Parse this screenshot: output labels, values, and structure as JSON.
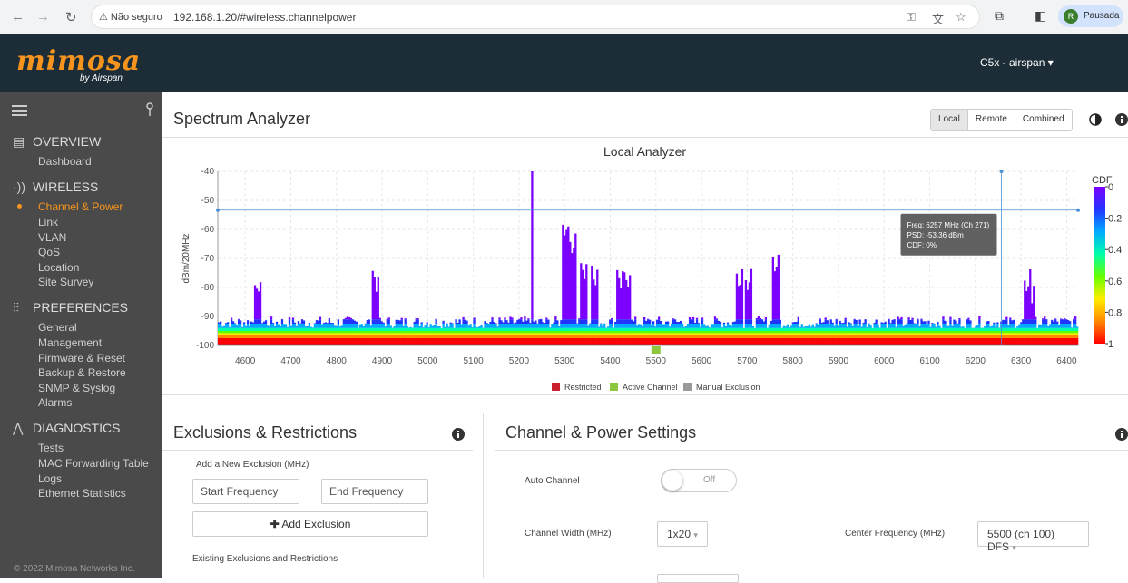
{
  "browser": {
    "security_label": "Não seguro",
    "url": "192.168.1.20/#wireless.channelpower",
    "profile_initial": "R",
    "profile_label": "Pausada"
  },
  "header": {
    "logo_text": "mimosa",
    "logo_sub": "by Airspan",
    "device_label": "C5x - airspan ▾"
  },
  "sidebar": {
    "sections": [
      {
        "label": "OVERVIEW",
        "icon": "overview-icon",
        "items": [
          "Dashboard"
        ]
      },
      {
        "label": "WIRELESS",
        "icon": "wireless-icon",
        "items": [
          "Channel & Power",
          "Link",
          "VLAN",
          "QoS",
          "Location",
          "Site Survey"
        ]
      },
      {
        "label": "PREFERENCES",
        "icon": "preferences-icon",
        "items": [
          "General",
          "Management",
          "Firmware & Reset",
          "Backup & Restore",
          "SNMP & Syslog",
          "Alarms"
        ]
      },
      {
        "label": "DIAGNOSTICS",
        "icon": "diagnostics-icon",
        "items": [
          "Tests",
          "MAC Forwarding Table",
          "Logs",
          "Ethernet Statistics"
        ]
      }
    ],
    "active_item": "Channel & Power",
    "copyright": "© 2022 Mimosa Networks Inc."
  },
  "page": {
    "title": "Spectrum Analyzer",
    "view_tabs": [
      "Local",
      "Remote",
      "Combined"
    ],
    "active_tab": "Local"
  },
  "chart_data": {
    "type": "heatmap",
    "title": "Local  Analyzer",
    "xlabel": "",
    "ylabel": "dBm/20MHz",
    "x_ticks": [
      "4600",
      "4700",
      "4800",
      "4900",
      "5000",
      "5100",
      "5200",
      "5300",
      "5400",
      "5500",
      "5600",
      "5700",
      "5800",
      "5900",
      "6000",
      "6100",
      "6200",
      "6300",
      "6400"
    ],
    "y_ticks": [
      "-40",
      "-50",
      "-60",
      "-70",
      "-80",
      "-90",
      "-100"
    ],
    "xlim": [
      4540,
      6425
    ],
    "ylim": [
      -100,
      -40
    ],
    "colorbar": {
      "title": "CDF",
      "ticks": [
        "0",
        "0.2",
        "0.4",
        "0.6",
        "0.8",
        "1"
      ],
      "colors": [
        "#7a00ff",
        "#2233ff",
        "#00aaff",
        "#00ffaa",
        "#66ff00",
        "#ffee00",
        "#ff8800",
        "#ff0000"
      ]
    },
    "noise_floor_dbm": -92,
    "peaks": [
      {
        "freq": 4625,
        "psd": -85
      },
      {
        "freq": 4885,
        "psd": -82
      },
      {
        "freq": 5225,
        "psd": -40
      },
      {
        "freq": 5300,
        "psd": -65
      },
      {
        "freq": 5315,
        "psd": -70
      },
      {
        "freq": 5340,
        "psd": -79
      },
      {
        "freq": 5365,
        "psd": -81
      },
      {
        "freq": 5420,
        "psd": -82
      },
      {
        "freq": 5435,
        "psd": -82
      },
      {
        "freq": 5680,
        "psd": -82
      },
      {
        "freq": 5700,
        "psd": -83
      },
      {
        "freq": 5760,
        "psd": -77
      },
      {
        "freq": 6310,
        "psd": -84
      },
      {
        "freq": 6320,
        "psd": -88
      }
    ],
    "crosshair": {
      "freq": 6257,
      "psd": -53.36
    },
    "tooltip": [
      "Freq: 6257 MHz (Ch 271)",
      "PSD: -53.36 dBm",
      "CDF: 0%"
    ],
    "active_channel_freq": 5500,
    "legend": [
      {
        "label": "Restricted",
        "color": "#cc1f2d"
      },
      {
        "label": "Active Channel",
        "color": "#8dc63f"
      },
      {
        "label": "Manual Exclusion",
        "color": "#9a9a9a"
      }
    ],
    "grid": true,
    "legend_position": "bottom"
  },
  "exclusions": {
    "title": "Exclusions & Restrictions",
    "add_label": "Add a New Exclusion  (MHz)",
    "start_placeholder": "Start Frequency",
    "end_placeholder": "End Frequency",
    "add_button": "Add Exclusion",
    "existing_label": "Existing Exclusions and Restrictions"
  },
  "channel_power": {
    "title": "Channel & Power Settings",
    "auto_channel_label": "Auto Channel",
    "auto_channel_state": "Off",
    "channel_width_label": "Channel Width (MHz)",
    "channel_width_value": "1x20",
    "center_freq_label": "Center Frequency (MHz)",
    "center_freq_value": "5500 (ch 100) DFS"
  }
}
